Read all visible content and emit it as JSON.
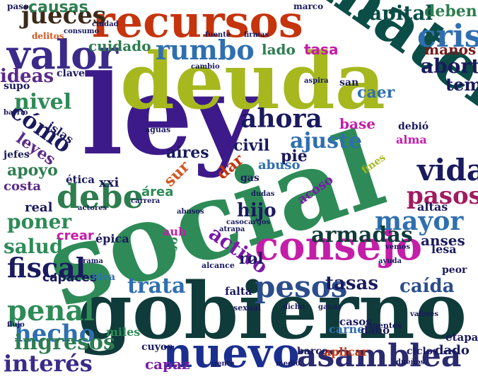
{
  "cloud": {
    "words": [
      {
        "text": "social",
        "color": "#2e8b57"
      },
      {
        "text": "ley",
        "color": "#3d1a8a"
      },
      {
        "text": "deuda",
        "color": "#a6b81e"
      },
      {
        "text": "gobierno",
        "color": "#0f3b3a"
      },
      {
        "text": "materia",
        "color": "#0b4d47"
      },
      {
        "text": "recursos",
        "color": "#c5340d"
      },
      {
        "text": "consejo",
        "color": "#c41ea9"
      },
      {
        "text": "nuevo",
        "color": "#1b2f8f"
      },
      {
        "text": "asamblea",
        "color": "#2a2a6e"
      },
      {
        "text": "pesos",
        "color": "#2b4d8c"
      },
      {
        "text": "crisis",
        "color": "#2f6fb0"
      },
      {
        "text": "valor",
        "color": "#3b2a8a"
      },
      {
        "text": "debe",
        "color": "#2e7d4f"
      },
      {
        "text": "mayor",
        "color": "#2f6fb0"
      },
      {
        "text": "rumbo",
        "color": "#2f6fb0"
      },
      {
        "text": "ahora",
        "color": "#1a1a5e"
      },
      {
        "text": "ajuste",
        "color": "#2f6fb0"
      },
      {
        "text": "fiscal",
        "color": "#1a1a5e"
      },
      {
        "text": "penal",
        "color": "#2e8b57"
      },
      {
        "text": "hecho",
        "color": "#2f6fb0"
      },
      {
        "text": "interés",
        "color": "#3b2a8a"
      },
      {
        "text": "ingresos",
        "color": "#2e7d4f"
      },
      {
        "text": "vida",
        "color": "#1a1a5e"
      },
      {
        "text": "pasos",
        "color": "#a11a5e"
      },
      {
        "text": "jueces",
        "color": "#3a2a1a"
      },
      {
        "text": "capital",
        "color": "#0b4d47"
      },
      {
        "text": "trata",
        "color": "#2f6fb0"
      },
      {
        "text": "armadas",
        "color": "#0f3b3a"
      },
      {
        "text": "tasas",
        "color": "#1a1a5e"
      },
      {
        "text": "caída",
        "color": "#2b4d8c"
      },
      {
        "text": "activo",
        "color": "#7a1aa8"
      },
      {
        "text": "causas",
        "color": "#2e7d4f"
      },
      {
        "text": "cómo",
        "color": "#1a1a5e"
      },
      {
        "text": "nivel",
        "color": "#2e8b57"
      },
      {
        "text": "ideas",
        "color": "#5a2a8a"
      },
      {
        "text": "poner",
        "color": "#2e8b57"
      },
      {
        "text": "salud",
        "color": "#2e8b57"
      },
      {
        "text": "apoyo",
        "color": "#2e7d4f"
      },
      {
        "text": "leyes",
        "color": "#5a2a8a"
      },
      {
        "text": "hijo",
        "color": "#1a1a5e"
      },
      {
        "text": "aires",
        "color": "#1a1a5e"
      },
      {
        "text": "sur",
        "color": "#d4561e"
      },
      {
        "text": "dar",
        "color": "#c5340d"
      },
      {
        "text": "rol",
        "color": "#1a1a5e"
      },
      {
        "text": "aborto",
        "color": "#1a1a5e"
      },
      {
        "text": "tema",
        "color": "#1a1a5e"
      },
      {
        "text": "caer",
        "color": "#2f6fb0"
      },
      {
        "text": "manos",
        "color": "#7a1a1a"
      },
      {
        "text": "deben",
        "color": "#2e7d4f"
      },
      {
        "text": "cuidado",
        "color": "#2e7d4f"
      },
      {
        "text": "lado",
        "color": "#2e7d4f"
      },
      {
        "text": "tasa",
        "color": "#c41ea9"
      },
      {
        "text": "base",
        "color": "#c41ea9"
      },
      {
        "text": "civil",
        "color": "#1a1a5e"
      },
      {
        "text": "pie",
        "color": "#1a1a5e"
      },
      {
        "text": "área",
        "color": "#2e8b57"
      },
      {
        "text": "xxi",
        "color": "#1a1a5e"
      },
      {
        "text": "real",
        "color": "#1a1a5e"
      },
      {
        "text": "costa",
        "color": "#5a2a8a"
      },
      {
        "text": "crear",
        "color": "#c41ea9"
      },
      {
        "text": "ética",
        "color": "#1a1a5e"
      },
      {
        "text": "capaz",
        "color": "#7a1aa8"
      },
      {
        "text": "capaces",
        "color": "#1a1a5e"
      },
      {
        "text": "falta",
        "color": "#1a1a5e"
      },
      {
        "text": "anses",
        "color": "#1a1a5e"
      },
      {
        "text": "lesa",
        "color": "#1a1a5e"
      },
      {
        "text": "carne",
        "color": "#2f6fb0"
      },
      {
        "text": "casos",
        "color": "#1a1a5e"
      },
      {
        "text": "daño",
        "color": "#1a1a5e"
      },
      {
        "text": "barco",
        "color": "#1a1a5e"
      },
      {
        "text": "aplicar",
        "color": "#c5340d"
      },
      {
        "text": "dado",
        "color": "#1a1a5e"
      },
      {
        "text": "etapa",
        "color": "#1a1a5e"
      },
      {
        "text": "ciclos",
        "color": "#1a1a5e"
      },
      {
        "text": "miles",
        "color": "#2e8b57"
      },
      {
        "text": "cuyos",
        "color": "#1a1a5e"
      },
      {
        "text": "abuso",
        "color": "#2f6fb0"
      },
      {
        "text": "acoso",
        "color": "#7a1aa8"
      },
      {
        "text": "altas",
        "color": "#1a1a5e"
      },
      {
        "text": "épica",
        "color": "#1a1a5e"
      },
      {
        "text": "auh",
        "color": "#c41ea9"
      },
      {
        "text": "bajo",
        "color": "#2e8b57"
      },
      {
        "text": "idea",
        "color": "#2f6fb0"
      },
      {
        "text": "islas",
        "color": "#1a1a5e"
      },
      {
        "text": "alma",
        "color": "#c41ea9"
      },
      {
        "text": "gas",
        "color": "#1a1a5e"
      },
      {
        "text": "peor",
        "color": "#1a1a5e"
      },
      {
        "text": "san",
        "color": "#1a1a5e"
      },
      {
        "text": "supo",
        "color": "#1a1a5e"
      },
      {
        "text": "clave",
        "color": "#1a1a5e"
      },
      {
        "text": "jefes",
        "color": "#1a1a5e"
      },
      {
        "text": "debió",
        "color": "#1a1a5e"
      },
      {
        "text": "fines",
        "color": "#a6b81e"
      },
      {
        "text": "paso",
        "color": "#1a1a5e"
      },
      {
        "text": "marco",
        "color": "#1a1a5e"
      },
      {
        "text": "delitos",
        "color": "#d4561e"
      },
      {
        "text": "alcance",
        "color": "#1a1a5e"
      },
      {
        "text": "aguas",
        "color": "#1a1a5e"
      },
      {
        "text": "agentes",
        "color": "#1a1a5e"
      },
      {
        "text": "sexual",
        "color": "#1a1a5e"
      },
      {
        "text": "flujo",
        "color": "#1a1a5e"
      },
      {
        "text": "drama",
        "color": "#1a1a5e"
      },
      {
        "text": "atrapa",
        "color": "#1a1a5e"
      },
      {
        "text": "caso",
        "color": "#1a1a5e"
      },
      {
        "text": "abusos",
        "color": "#1a1a5e"
      },
      {
        "text": "cargos",
        "color": "#1a1a5e"
      },
      {
        "text": "dudas",
        "color": "#1a1a5e"
      },
      {
        "text": "fuente",
        "color": "#1a1a5e"
      },
      {
        "text": "firmas",
        "color": "#1a1a5e"
      },
      {
        "text": "ayuda",
        "color": "#1a1a5e"
      },
      {
        "text": "vemos",
        "color": "#1a1a5e"
      },
      {
        "text": "actores",
        "color": "#1a1a5e"
      },
      {
        "text": "carrera",
        "color": "#1a1a5e"
      },
      {
        "text": "ganar",
        "color": "#1a1a5e"
      },
      {
        "text": "dicho",
        "color": "#1a1a5e"
      },
      {
        "text": "barrio",
        "color": "#1a1a5e"
      },
      {
        "text": "consumo",
        "color": "#1a1a5e"
      },
      {
        "text": "ciudad",
        "color": "#1a1a5e"
      },
      {
        "text": "medio",
        "color": "#1a1a5e"
      },
      {
        "text": "aspira",
        "color": "#1a1a5e"
      },
      {
        "text": "gente",
        "color": "#1a1a5e"
      },
      {
        "text": "valores",
        "color": "#1a1a5e"
      },
      {
        "text": "cambio",
        "color": "#1a1a5e"
      },
      {
        "text": "dueños",
        "color": "#1a1a5e"
      }
    ]
  }
}
